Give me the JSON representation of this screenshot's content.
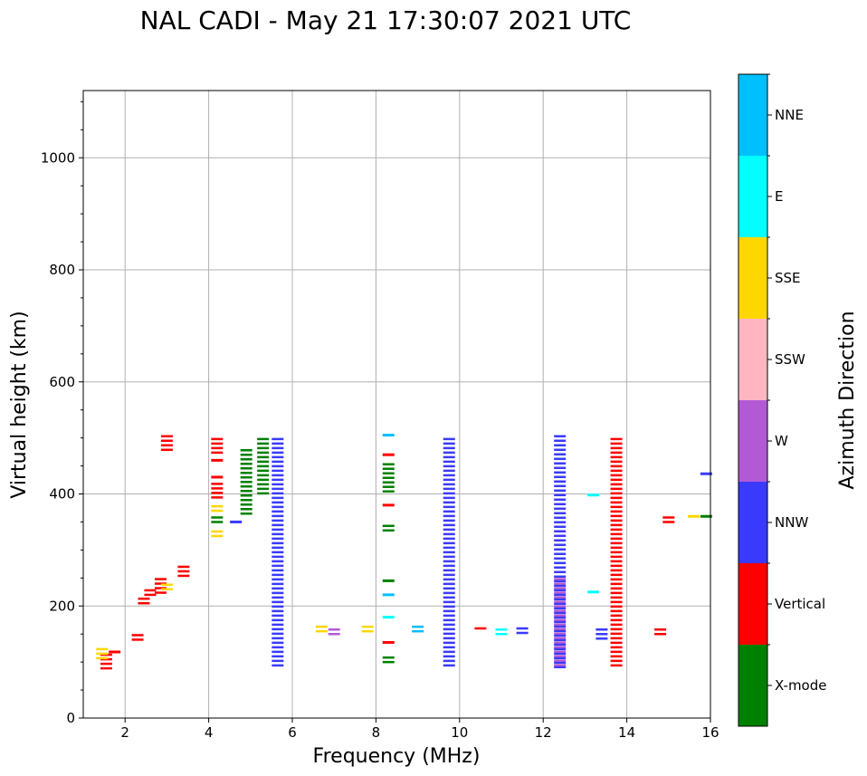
{
  "chart_data": {
    "type": "scatter",
    "title": "NAL CADI - May 21 17:30:07 2021 UTC",
    "xlabel": "Frequency (MHz)",
    "ylabel": "Virtual height (km)",
    "xlim": [
      1,
      16
    ],
    "ylim": [
      0,
      1120
    ],
    "xticks": [
      2,
      4,
      6,
      8,
      10,
      12,
      14,
      16
    ],
    "yticks": [
      0,
      200,
      400,
      600,
      800,
      1000
    ],
    "grid": true,
    "colorbar": {
      "label": "Azimuth Direction",
      "categories": [
        "X-mode",
        "Vertical",
        "NNW",
        "W",
        "SSW",
        "SSE",
        "E",
        "NNE"
      ],
      "colors": {
        "X-mode": "#008000",
        "Vertical": "#ff0000",
        "NNW": "#3a3aff",
        "W": "#b25ad6",
        "SSW": "#ffb6c1",
        "SSE": "#ffd700",
        "E": "#00ffff",
        "NNE": "#00bfff"
      }
    },
    "echoes": [
      {
        "f": 1.55,
        "h": [
          90,
          115
        ],
        "dir": "Vertical"
      },
      {
        "f": 1.45,
        "h": [
          105,
          125
        ],
        "dir": "SSE"
      },
      {
        "f": 1.75,
        "h": [
          112,
          118
        ],
        "dir": "Vertical"
      },
      {
        "f": 2.3,
        "h": [
          140,
          150
        ],
        "dir": "Vertical"
      },
      {
        "f": 2.45,
        "h": [
          205,
          215
        ],
        "dir": "Vertical"
      },
      {
        "f": 2.6,
        "h": [
          215,
          230
        ],
        "dir": "Vertical"
      },
      {
        "f": 2.85,
        "h": [
          220,
          250
        ],
        "dir": "Vertical"
      },
      {
        "f": 3.0,
        "h": [
          230,
          240
        ],
        "dir": "SSE"
      },
      {
        "f": 3.4,
        "h": [
          250,
          272
        ],
        "dir": "Vertical"
      },
      {
        "f": 3.0,
        "h": [
          475,
          505
        ],
        "dir": "Vertical"
      },
      {
        "f": 4.2,
        "h": [
          325,
          335
        ],
        "dir": "SSE"
      },
      {
        "f": 4.2,
        "h": [
          350,
          360
        ],
        "dir": "X-mode"
      },
      {
        "f": 4.2,
        "h": [
          370,
          380
        ],
        "dir": "SSE"
      },
      {
        "f": 4.2,
        "h": [
          395,
          420
        ],
        "dir": "Vertical"
      },
      {
        "f": 4.2,
        "h": [
          425,
          430
        ],
        "dir": "Vertical"
      },
      {
        "f": 4.2,
        "h": [
          455,
          460
        ],
        "dir": "Vertical"
      },
      {
        "f": 4.2,
        "h": [
          475,
          500
        ],
        "dir": "Vertical"
      },
      {
        "f": 4.65,
        "h": [
          345,
          350
        ],
        "dir": "NNW"
      },
      {
        "f": 4.9,
        "h": [
          360,
          480
        ],
        "dir": "X-mode"
      },
      {
        "f": 5.3,
        "h": [
          400,
          500
        ],
        "dir": "X-mode"
      },
      {
        "f": 5.65,
        "h": [
          95,
          500
        ],
        "dir": "NNW"
      },
      {
        "f": 6.7,
        "h": [
          150,
          165
        ],
        "dir": "SSE"
      },
      {
        "f": 7.0,
        "h": [
          150,
          160
        ],
        "dir": "W"
      },
      {
        "f": 7.8,
        "h": [
          150,
          165
        ],
        "dir": "SSE"
      },
      {
        "f": 8.3,
        "h": [
          100,
          110
        ],
        "dir": "X-mode"
      },
      {
        "f": 8.3,
        "h": [
          130,
          135
        ],
        "dir": "Vertical"
      },
      {
        "f": 8.3,
        "h": [
          175,
          180
        ],
        "dir": "E"
      },
      {
        "f": 8.3,
        "h": [
          215,
          220
        ],
        "dir": "NNE"
      },
      {
        "f": 8.3,
        "h": [
          240,
          245
        ],
        "dir": "X-mode"
      },
      {
        "f": 8.3,
        "h": [
          330,
          345
        ],
        "dir": "X-mode"
      },
      {
        "f": 8.3,
        "h": [
          375,
          380
        ],
        "dir": "Vertical"
      },
      {
        "f": 8.3,
        "h": [
          405,
          455
        ],
        "dir": "X-mode"
      },
      {
        "f": 8.3,
        "h": [
          465,
          470
        ],
        "dir": "Vertical"
      },
      {
        "f": 8.3,
        "h": [
          500,
          505
        ],
        "dir": "NNE"
      },
      {
        "f": 9.0,
        "h": [
          150,
          165
        ],
        "dir": "NNE"
      },
      {
        "f": 9.75,
        "h": [
          90,
          500
        ],
        "dir": "NNW"
      },
      {
        "f": 10.5,
        "h": [
          155,
          162
        ],
        "dir": "Vertical"
      },
      {
        "f": 11.0,
        "h": [
          145,
          160
        ],
        "dir": "E"
      },
      {
        "f": 11.5,
        "h": [
          150,
          162
        ],
        "dir": "NNW"
      },
      {
        "f": 12.4,
        "h": [
          90,
          505
        ],
        "dir": "NNW"
      },
      {
        "f": 12.4,
        "h": [
          90,
          250
        ],
        "dir": "W"
      },
      {
        "f": 13.2,
        "h": [
          225,
          225
        ],
        "dir": "E"
      },
      {
        "f": 13.2,
        "h": [
          398,
          398
        ],
        "dir": "E"
      },
      {
        "f": 13.4,
        "h": [
          140,
          160
        ],
        "dir": "NNW"
      },
      {
        "f": 13.75,
        "h": [
          90,
          500
        ],
        "dir": "Vertical"
      },
      {
        "f": 14.8,
        "h": [
          150,
          160
        ],
        "dir": "Vertical"
      },
      {
        "f": 15.0,
        "h": [
          350,
          360
        ],
        "dir": "Vertical"
      },
      {
        "f": 15.6,
        "h": [
          355,
          360
        ],
        "dir": "SSE"
      },
      {
        "f": 15.9,
        "h": [
          355,
          360
        ],
        "dir": "X-mode"
      },
      {
        "f": 15.9,
        "h": [
          430,
          436
        ],
        "dir": "NNW"
      }
    ]
  }
}
